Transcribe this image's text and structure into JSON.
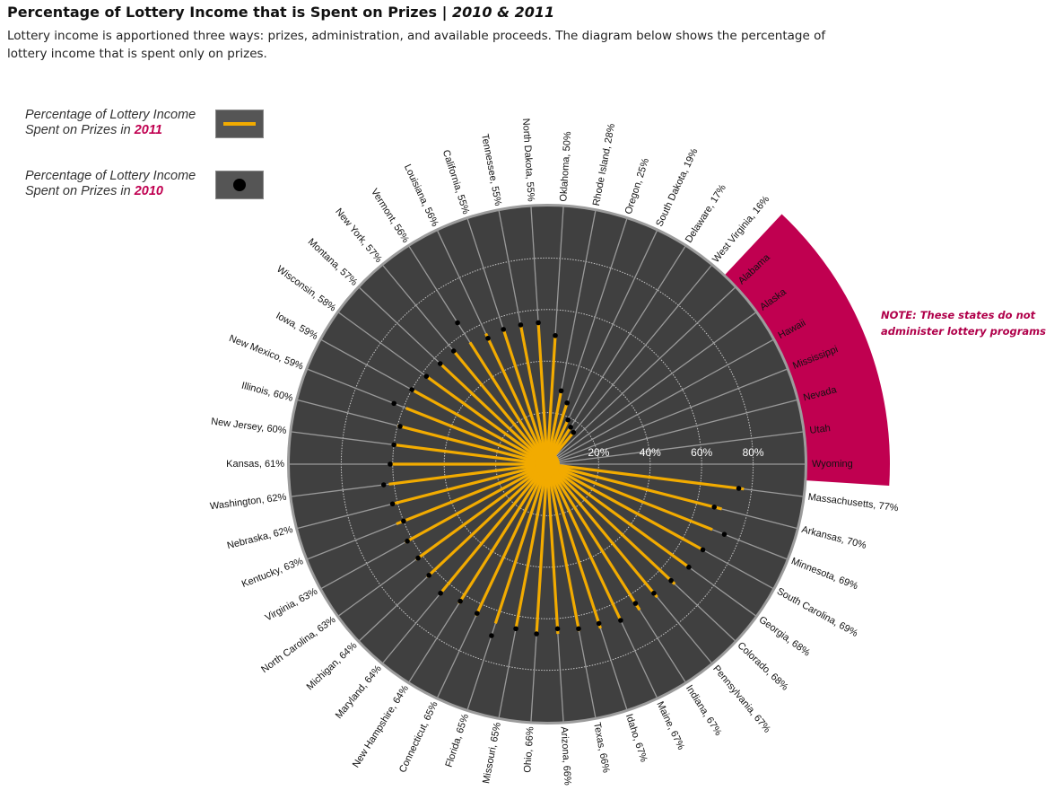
{
  "header": {
    "title": "Percentage of Lottery Income that is Spent on Prizes | ",
    "title_years": "2010 & 2011",
    "subtitle": "Lottery income is apportioned three ways: prizes, administration, and available proceeds.  The diagram below shows  the percentage of lottery income that is spent only on prizes."
  },
  "legend": {
    "items": [
      {
        "text": "Percentage of Lottery Income Spent on Prizes in ",
        "year": "2011",
        "symbol": "line"
      },
      {
        "text": "Percentage of Lottery Income Spent on Prizes in ",
        "year": "2010",
        "symbol": "dot"
      }
    ]
  },
  "note": "NOTE: These states do not administer lottery programs",
  "colors": {
    "background_disc": "#404040",
    "line_2011": "#f2ab00",
    "dot_2010": "#000000",
    "no_lottery_band": "#c00050",
    "grid": "#9a9a9a"
  },
  "chart_data": {
    "type": "radial-bar",
    "title": "Percentage of Lottery Income that is Spent on Prizes | 2010 & 2011",
    "rmax": 100,
    "ring_ticks": [
      20,
      40,
      60,
      80
    ],
    "ring_tick_labels": [
      "20%",
      "40%",
      "60%",
      "80%"
    ],
    "series": [
      {
        "name": "2011",
        "mark": "line"
      },
      {
        "name": "2010",
        "mark": "dot"
      }
    ],
    "states": [
      {
        "name": "Massachusetts",
        "label": "Massachusetts, 77%",
        "v2011": 77,
        "v2010": 75
      },
      {
        "name": "Arkansas",
        "label": "Arkansas, 70%",
        "v2011": 70,
        "v2010": 67
      },
      {
        "name": "Minnesota",
        "label": "Minnesota, 69%",
        "v2011": 69,
        "v2010": 74
      },
      {
        "name": "South Carolina",
        "label": "South Carolina, 69%",
        "v2011": 69,
        "v2010": 69
      },
      {
        "name": "Georgia",
        "label": "Georgia, 68%",
        "v2011": 68,
        "v2010": 68
      },
      {
        "name": "Colorado",
        "label": "Colorado, 68%",
        "v2011": 68,
        "v2010": 66
      },
      {
        "name": "Pennsylvania",
        "label": "Pennsylvania, 67%",
        "v2011": 67,
        "v2010": 65
      },
      {
        "name": "Indiana",
        "label": "Indiana, 67%",
        "v2011": 67,
        "v2010": 64
      },
      {
        "name": "Maine",
        "label": "Maine, 67%",
        "v2011": 67,
        "v2010": 67
      },
      {
        "name": "Idaho",
        "label": "Idaho, 67%",
        "v2011": 67,
        "v2010": 65
      },
      {
        "name": "Texas",
        "label": "Texas, 66%",
        "v2011": 66,
        "v2010": 65
      },
      {
        "name": "Arizona",
        "label": "Arizona, 66%",
        "v2011": 66,
        "v2010": 64
      },
      {
        "name": "Ohio",
        "label": "Ohio, 66%",
        "v2011": 66,
        "v2010": 66
      },
      {
        "name": "Missouri",
        "label": "Missouri, 65%",
        "v2011": 65,
        "v2010": 65
      },
      {
        "name": "Florida",
        "label": "Florida, 65%",
        "v2011": 65,
        "v2010": 70
      },
      {
        "name": "Connecticut",
        "label": "Connecticut, 65%",
        "v2011": 65,
        "v2010": 64
      },
      {
        "name": "New Hampshire",
        "label": "New Hampshire, 64%",
        "v2011": 64,
        "v2010": 63
      },
      {
        "name": "Maryland",
        "label": "Maryland, 64%",
        "v2011": 64,
        "v2010": 65
      },
      {
        "name": "Michigan",
        "label": "Michigan, 64%",
        "v2011": 64,
        "v2010": 63
      },
      {
        "name": "North Carolina",
        "label": "North Carolina, 63%",
        "v2011": 63,
        "v2010": 62
      },
      {
        "name": "Virginia",
        "label": "Virginia, 63%",
        "v2011": 63,
        "v2010": 62
      },
      {
        "name": "Kentucky",
        "label": "Kentucky, 63%",
        "v2011": 63,
        "v2010": 60
      },
      {
        "name": "Nebraska",
        "label": "Nebraska, 62%",
        "v2011": 62,
        "v2010": 62
      },
      {
        "name": "Washington",
        "label": "Washington, 62%",
        "v2011": 62,
        "v2010": 64
      },
      {
        "name": "Kansas",
        "label": "Kansas, 61%",
        "v2011": 61,
        "v2010": 61
      },
      {
        "name": "New Jersey",
        "label": "New Jersey, 60%",
        "v2011": 60,
        "v2010": 60
      },
      {
        "name": "Illinois",
        "label": "Illinois, 60%",
        "v2011": 60,
        "v2010": 59
      },
      {
        "name": "New Mexico",
        "label": "New Mexico, 59%",
        "v2011": 59,
        "v2010": 64
      },
      {
        "name": "Iowa",
        "label": "Iowa, 59%",
        "v2011": 59,
        "v2010": 60
      },
      {
        "name": "Wisconsin",
        "label": "Wisconsin, 58%",
        "v2011": 58,
        "v2010": 58
      },
      {
        "name": "Montana",
        "label": "Montana, 57%",
        "v2011": 57,
        "v2010": 57
      },
      {
        "name": "New York",
        "label": "New York, 57%",
        "v2011": 57,
        "v2010": 57
      },
      {
        "name": "Vermont",
        "label": "Vermont, 56%",
        "v2011": 56,
        "v2010": 65
      },
      {
        "name": "Louisiana",
        "label": "Louisiana, 56%",
        "v2011": 56,
        "v2010": 54
      },
      {
        "name": "California",
        "label": "California, 55%",
        "v2011": 55,
        "v2010": 55
      },
      {
        "name": "Tennessee",
        "label": "Tennessee, 55%",
        "v2011": 55,
        "v2010": 55
      },
      {
        "name": "North Dakota",
        "label": "North Dakota, 55%",
        "v2011": 55,
        "v2010": 55
      },
      {
        "name": "Oklahoma",
        "label": "Oklahoma, 50%",
        "v2011": 50,
        "v2010": 50
      },
      {
        "name": "Rhode Island",
        "label": "Rhode Island, 28%",
        "v2011": 28,
        "v2010": 29
      },
      {
        "name": "Oregon",
        "label": "Oregon, 25%",
        "v2011": 25,
        "v2010": 25
      },
      {
        "name": "South Dakota",
        "label": "South Dakota, 19%",
        "v2011": 19,
        "v2010": 19
      },
      {
        "name": "Delaware",
        "label": "Delaware, 17%",
        "v2011": 17,
        "v2010": 17
      },
      {
        "name": "West Virginia",
        "label": "West Virginia, 16%",
        "v2011": 16,
        "v2010": 16
      }
    ],
    "no_lottery_states": [
      "Alabama",
      "Alaska",
      "Hawaii",
      "Mississippi",
      "Nevada",
      "Utah",
      "Wyoming"
    ]
  }
}
